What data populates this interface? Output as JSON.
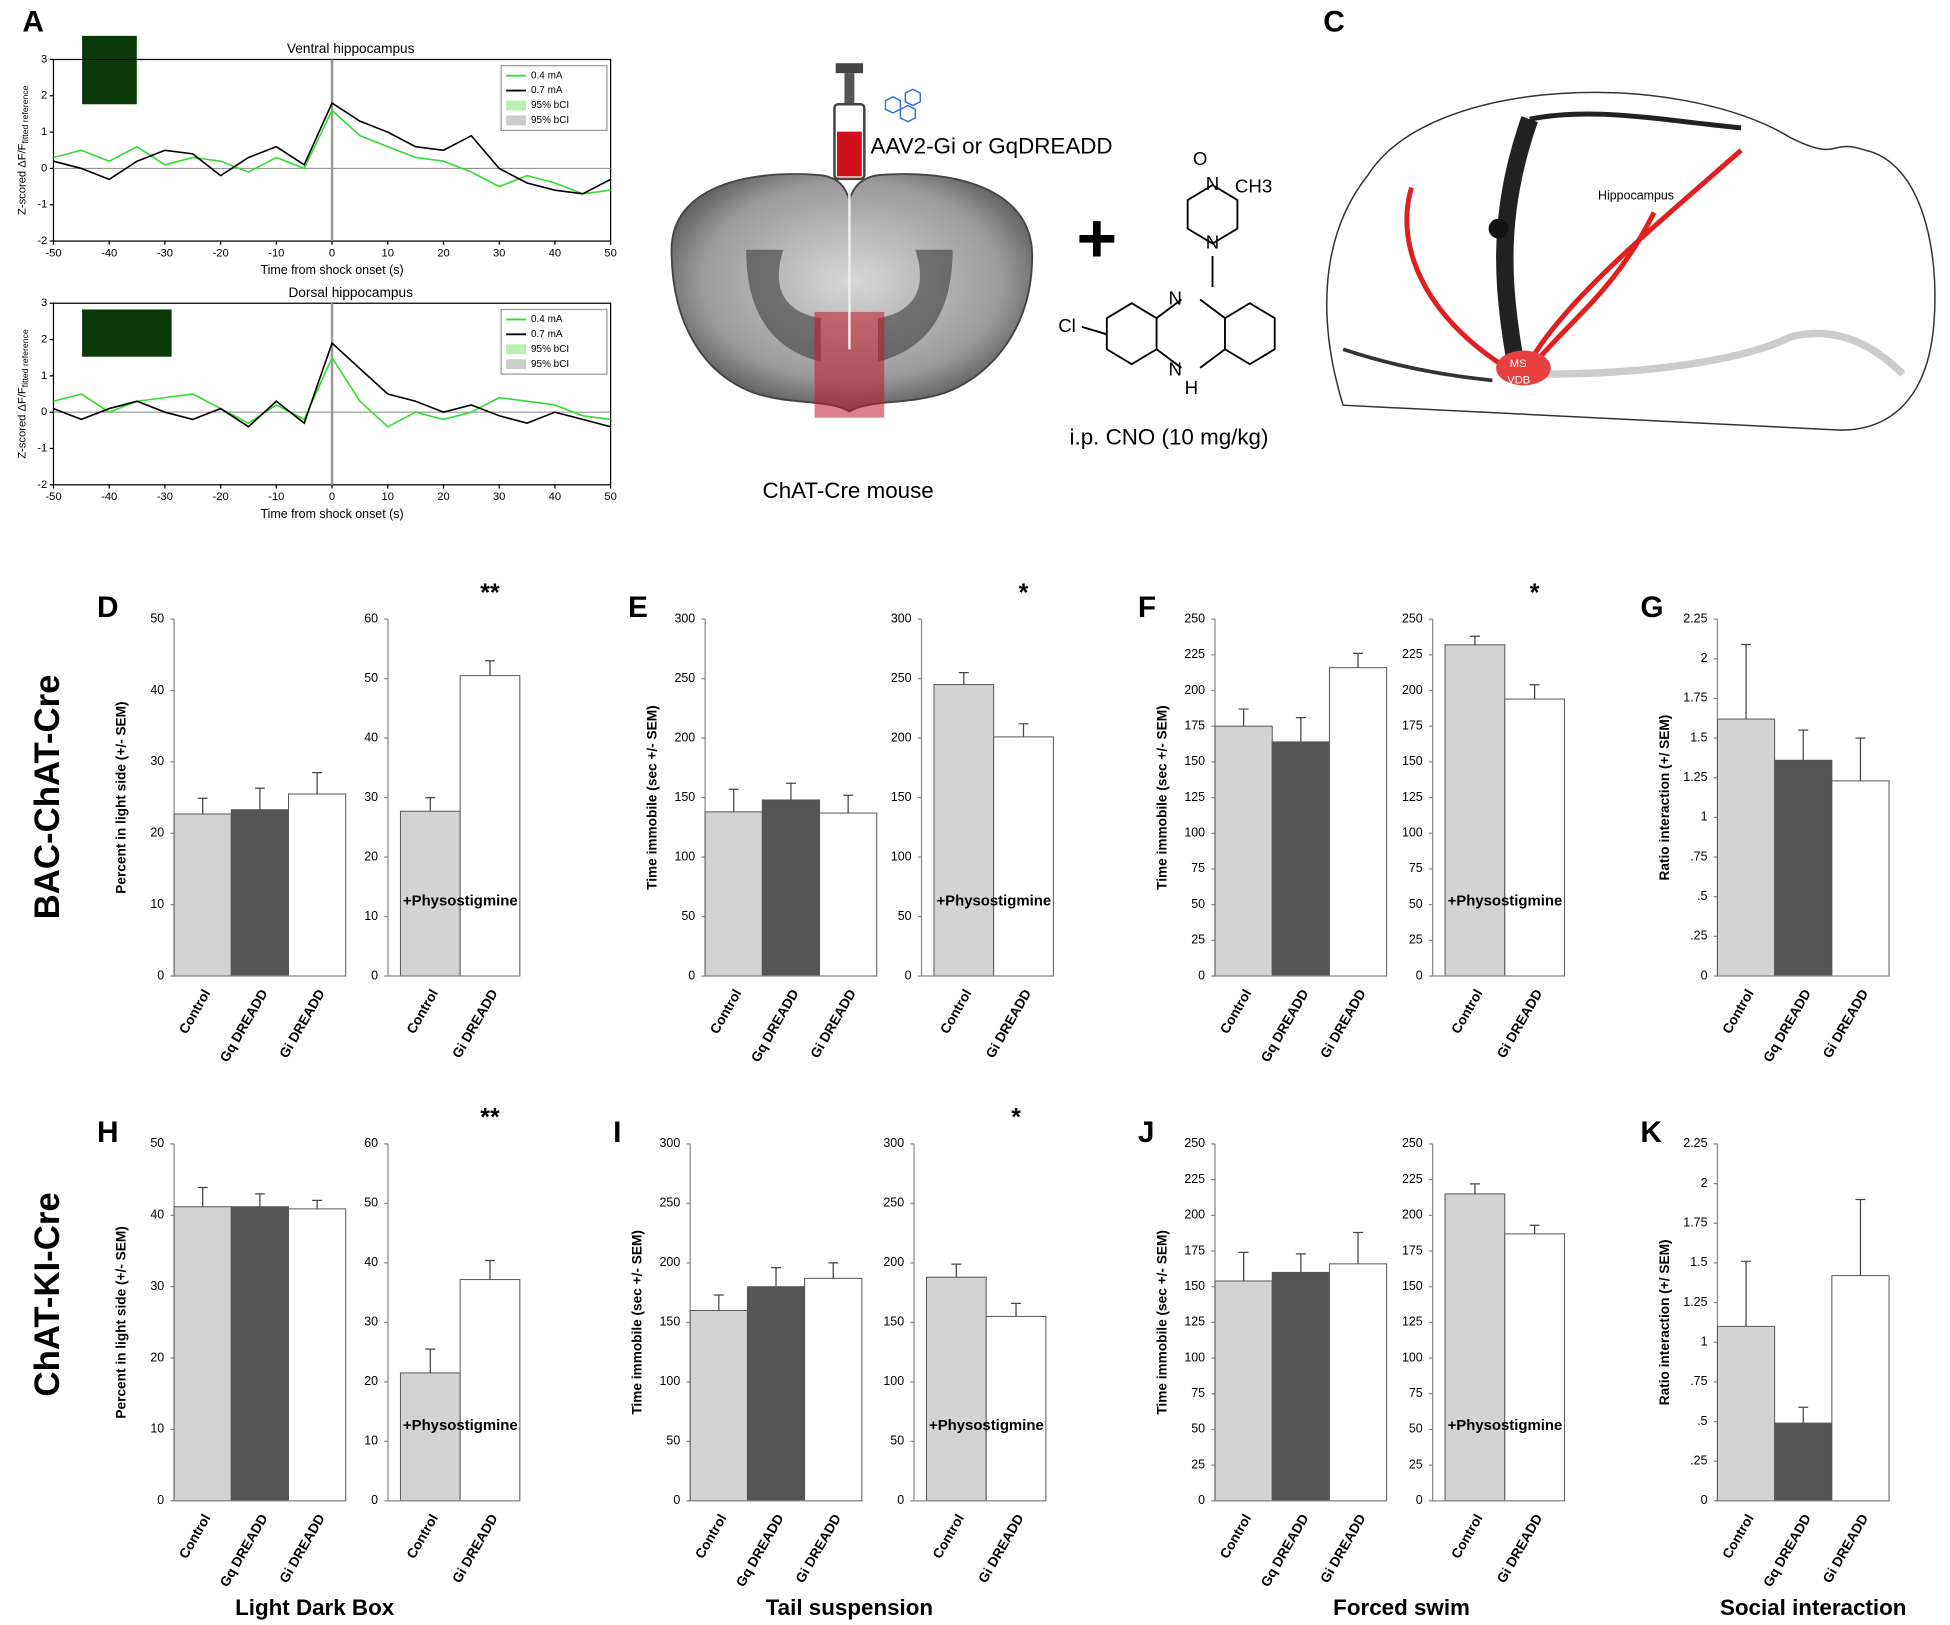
{
  "panel_labels": [
    "A",
    "C"
  ],
  "diagram": {
    "injection": "AAV2-Gi or GqDREADD",
    "mouse": "ChAT-Cre mouse",
    "plus": "+",
    "drug": "i.p. CNO (10 mg/kg)",
    "chem": [
      "Cl",
      "N",
      "N",
      "H",
      "N",
      "N",
      "O",
      "CH3"
    ],
    "hippocampus": "Hippocampus",
    "ms": "MS",
    "vdb": "VDB"
  },
  "row_labels": [
    "BAC-ChAT-Cre",
    "ChAT-KI-Cre"
  ],
  "column_labels": [
    "Light Dark Box",
    "Tail suspension",
    "Forced swim",
    "Social interaction"
  ],
  "chart_data": [
    {
      "type": "line",
      "title": "Ventral hippocampus",
      "xlabel": "Time from shock onset (s)",
      "ylabel": "Z-scored ΔF/F",
      "ylabel_sub": "fitted reference",
      "x": [
        -50,
        -45,
        -40,
        -35,
        -30,
        -25,
        -20,
        -15,
        -10,
        -5,
        0,
        5,
        10,
        15,
        20,
        25,
        30,
        35,
        40,
        45,
        50
      ],
      "series": [
        {
          "name": "0.4 mA",
          "color": "#33dd33",
          "values": [
            0.3,
            0.5,
            0.2,
            0.6,
            0.1,
            0.3,
            0.2,
            -0.1,
            0.3,
            0.0,
            1.6,
            0.9,
            0.6,
            0.3,
            0.2,
            -0.1,
            -0.5,
            -0.2,
            -0.4,
            -0.7,
            -0.6
          ]
        },
        {
          "name": "0.7 mA",
          "color": "#000000",
          "values": [
            0.2,
            0.0,
            -0.3,
            0.2,
            0.5,
            0.4,
            -0.2,
            0.3,
            0.6,
            0.1,
            1.8,
            1.3,
            1.0,
            0.6,
            0.5,
            0.9,
            0.0,
            -0.4,
            -0.6,
            -0.7,
            -0.3
          ]
        }
      ],
      "bands": [
        {
          "name": "95% bCI",
          "color": "#b8f0b0"
        },
        {
          "name": "95% bCI",
          "color": "#cccccc"
        }
      ],
      "xlim": [
        -50,
        50
      ],
      "xticks": [
        -50,
        -40,
        -30,
        -20,
        -10,
        0,
        10,
        20,
        30,
        40,
        50
      ],
      "ylim": [
        -2,
        3
      ],
      "yticks": [
        -2,
        -1,
        0,
        1,
        2,
        3
      ],
      "hline": 0,
      "vline": 0
    },
    {
      "type": "line",
      "title": "Dorsal hippocampus",
      "xlabel": "Time from shock onset (s)",
      "ylabel": "Z-scored ΔF/F",
      "ylabel_sub": "fitted reference",
      "x": [
        -50,
        -45,
        -40,
        -35,
        -30,
        -25,
        -20,
        -15,
        -10,
        -5,
        0,
        5,
        10,
        15,
        20,
        25,
        30,
        35,
        40,
        45,
        50
      ],
      "series": [
        {
          "name": "0.4 mA",
          "color": "#33dd33",
          "values": [
            0.3,
            0.5,
            0.0,
            0.3,
            0.4,
            0.5,
            0.1,
            -0.3,
            0.2,
            -0.2,
            1.5,
            0.3,
            -0.4,
            0.0,
            -0.2,
            0.0,
            0.4,
            0.3,
            0.2,
            -0.1,
            -0.2
          ]
        },
        {
          "name": "0.7 mA",
          "color": "#000000",
          "values": [
            0.1,
            -0.2,
            0.1,
            0.3,
            0.0,
            -0.2,
            0.1,
            -0.4,
            0.3,
            -0.3,
            1.9,
            1.2,
            0.5,
            0.3,
            0.0,
            0.2,
            -0.1,
            -0.3,
            0.0,
            -0.2,
            -0.4
          ]
        }
      ],
      "bands": [
        {
          "name": "95% bCI",
          "color": "#b8f0b0"
        },
        {
          "name": "95% bCI",
          "color": "#cccccc"
        }
      ],
      "xlim": [
        -50,
        50
      ],
      "xticks": [
        -50,
        -40,
        -30,
        -20,
        -10,
        0,
        10,
        20,
        30,
        40,
        50
      ],
      "ylim": [
        -2,
        3
      ],
      "yticks": [
        -2,
        -1,
        0,
        1,
        2,
        3
      ],
      "hline": 0,
      "vline": 0
    },
    {
      "type": "bar",
      "panel": "D",
      "ylabel": "Percent in light side (+/- SEM)",
      "categories": [
        "Control",
        "Gq DREADD",
        "Gi DREADD"
      ],
      "values": [
        22.7,
        23.3,
        25.5
      ],
      "errors": [
        2.2,
        3.0,
        3.0
      ],
      "colors": [
        "#d3d3d3",
        "#555555",
        "#ffffff"
      ],
      "ylim": [
        0,
        50
      ],
      "yticks": [
        0,
        10,
        20,
        30,
        40,
        50
      ]
    },
    {
      "type": "bar",
      "categories": [
        "Control",
        "Gi DREADD"
      ],
      "values": [
        27.7,
        50.5
      ],
      "errors": [
        2.3,
        2.5
      ],
      "colors": [
        "#d3d3d3",
        "#ffffff"
      ],
      "ylim": [
        0,
        60
      ],
      "yticks": [
        0,
        10,
        20,
        30,
        40,
        50,
        60
      ],
      "annotation": "**",
      "treatment": "+Physostigmine"
    },
    {
      "type": "bar",
      "panel": "E",
      "ylabel": "Time immobile (sec +/- SEM)",
      "categories": [
        "Control",
        "Gq DREADD",
        "Gi DREADD"
      ],
      "values": [
        138,
        148,
        137
      ],
      "errors": [
        19,
        14,
        15
      ],
      "colors": [
        "#d3d3d3",
        "#555555",
        "#ffffff"
      ],
      "ylim": [
        0,
        300
      ],
      "yticks": [
        0,
        50,
        100,
        150,
        200,
        250,
        300
      ]
    },
    {
      "type": "bar",
      "categories": [
        "Control",
        "Gi DREADD"
      ],
      "values": [
        245,
        201
      ],
      "errors": [
        10,
        11
      ],
      "colors": [
        "#d3d3d3",
        "#ffffff"
      ],
      "ylim": [
        0,
        300
      ],
      "yticks": [
        0,
        50,
        100,
        150,
        200,
        250,
        300
      ],
      "annotation": "*",
      "treatment": "+Physostigmine"
    },
    {
      "type": "bar",
      "panel": "F",
      "ylabel": "Time immobile (sec +/- SEM)",
      "categories": [
        "Control",
        "Gq DREADD",
        "Gi DREADD"
      ],
      "values": [
        175,
        164,
        216
      ],
      "errors": [
        12,
        17,
        10
      ],
      "colors": [
        "#d3d3d3",
        "#555555",
        "#ffffff"
      ],
      "ylim": [
        0,
        250
      ],
      "yticks": [
        0,
        25,
        50,
        75,
        100,
        125,
        150,
        175,
        200,
        225,
        250
      ]
    },
    {
      "type": "bar",
      "categories": [
        "Control",
        "Gi DREADD"
      ],
      "values": [
        232,
        194
      ],
      "errors": [
        6,
        10
      ],
      "colors": [
        "#d3d3d3",
        "#ffffff"
      ],
      "ylim": [
        0,
        250
      ],
      "yticks": [
        0,
        25,
        50,
        75,
        100,
        125,
        150,
        175,
        200,
        225,
        250
      ],
      "annotation": "*",
      "treatment": "+Physostigmine"
    },
    {
      "type": "bar",
      "panel": "G",
      "ylabel": "Ratio interaction (+/ SEM)",
      "categories": [
        "Control",
        "Gq DREADD",
        "Gi DREADD"
      ],
      "values": [
        1.62,
        1.36,
        1.23
      ],
      "errors": [
        0.47,
        0.19,
        0.27
      ],
      "colors": [
        "#d3d3d3",
        "#555555",
        "#ffffff"
      ],
      "ylim": [
        0,
        2.25
      ],
      "yticks": [
        0,
        {
          "value": 0.25,
          "label": ".25"
        },
        {
          "value": 0.5,
          "label": ".5"
        },
        {
          "value": 0.75,
          "label": ".75"
        },
        1,
        1.25,
        1.5,
        1.75,
        2,
        2.25
      ]
    },
    {
      "type": "bar",
      "panel": "H",
      "ylabel": "Percent in light side (+/- SEM)",
      "categories": [
        "Control",
        "Gq DREADD",
        "Gi DREADD"
      ],
      "values": [
        41.2,
        41.2,
        40.9
      ],
      "errors": [
        2.7,
        1.8,
        1.2
      ],
      "colors": [
        "#d3d3d3",
        "#555555",
        "#ffffff"
      ],
      "ylim": [
        0,
        50
      ],
      "yticks": [
        0,
        10,
        20,
        30,
        40,
        50
      ]
    },
    {
      "type": "bar",
      "categories": [
        "Control",
        "Gi DREADD"
      ],
      "values": [
        21.5,
        37.2
      ],
      "errors": [
        4.0,
        3.2
      ],
      "colors": [
        "#d3d3d3",
        "#ffffff"
      ],
      "ylim": [
        0,
        60
      ],
      "yticks": [
        0,
        10,
        20,
        30,
        40,
        50,
        60
      ],
      "annotation": "**",
      "treatment": "+Physostigmine"
    },
    {
      "type": "bar",
      "panel": "I",
      "ylabel": "Time immobile (sec +/- SEM)",
      "categories": [
        "Control",
        "Gq DREADD",
        "Gi DREADD"
      ],
      "values": [
        160,
        180,
        187
      ],
      "errors": [
        13,
        16,
        13
      ],
      "colors": [
        "#d3d3d3",
        "#555555",
        "#ffffff"
      ],
      "ylim": [
        0,
        300
      ],
      "yticks": [
        0,
        50,
        100,
        150,
        200,
        250,
        300
      ]
    },
    {
      "type": "bar",
      "categories": [
        "Control",
        "Gi DREADD"
      ],
      "values": [
        188,
        155
      ],
      "errors": [
        11,
        11
      ],
      "colors": [
        "#d3d3d3",
        "#ffffff"
      ],
      "ylim": [
        0,
        300
      ],
      "yticks": [
        0,
        50,
        100,
        150,
        200,
        250,
        300
      ],
      "annotation": "*",
      "treatment": "+Physostigmine"
    },
    {
      "type": "bar",
      "panel": "J",
      "ylabel": "Time immobile (sec +/- SEM)",
      "categories": [
        "Control",
        "Gq DREADD",
        "Gi DREADD"
      ],
      "values": [
        154,
        160,
        166
      ],
      "errors": [
        20,
        13,
        22
      ],
      "colors": [
        "#d3d3d3",
        "#555555",
        "#ffffff"
      ],
      "ylim": [
        0,
        250
      ],
      "yticks": [
        0,
        25,
        50,
        75,
        100,
        125,
        150,
        175,
        200,
        225,
        250
      ]
    },
    {
      "type": "bar",
      "categories": [
        "Control",
        "Gi DREADD"
      ],
      "values": [
        215,
        187
      ],
      "errors": [
        7,
        6
      ],
      "colors": [
        "#d3d3d3",
        "#ffffff"
      ],
      "ylim": [
        0,
        250
      ],
      "yticks": [
        0,
        25,
        50,
        75,
        100,
        125,
        150,
        175,
        200,
        225,
        250
      ],
      "treatment": "+Physostigmine"
    },
    {
      "type": "bar",
      "panel": "K",
      "ylabel": "Ratio interaction (+/ SEM)",
      "categories": [
        "Control",
        "Gq DREADD",
        "Gi DREADD"
      ],
      "values": [
        1.1,
        0.49,
        1.42
      ],
      "errors": [
        0.41,
        0.1,
        0.48
      ],
      "colors": [
        "#d3d3d3",
        "#555555",
        "#ffffff"
      ],
      "ylim": [
        0,
        2.25
      ],
      "yticks": [
        0,
        {
          "value": 0.25,
          "label": ".25"
        },
        {
          "value": 0.5,
          "label": ".5"
        },
        {
          "value": 0.75,
          "label": ".75"
        },
        1,
        1.25,
        1.5,
        1.75,
        2,
        2.25
      ]
    }
  ]
}
